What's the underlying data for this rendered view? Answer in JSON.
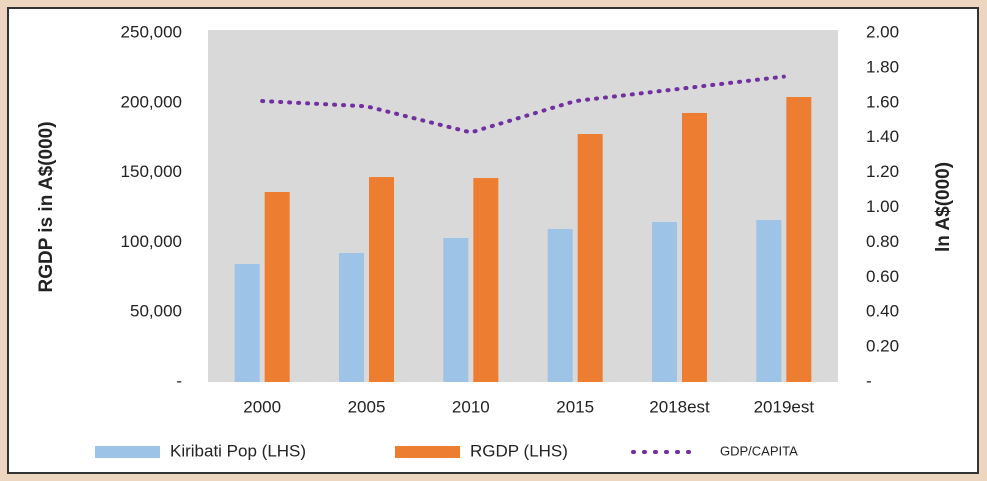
{
  "chart_data": {
    "type": "bar",
    "categories": [
      "2000",
      "2005",
      "2010",
      "2015",
      "2018est",
      "2019est"
    ],
    "series": [
      {
        "name": "Kiribati Pop (LHS)",
        "color": "#9dc3e6",
        "kind": "bar",
        "values": [
          84500,
          92400,
          103150,
          109600,
          114600,
          116000
        ]
      },
      {
        "name": "RGDP (LHS)",
        "color": "#ed7d31",
        "kind": "bar",
        "values": [
          136100,
          146800,
          146100,
          177650,
          192700,
          204150
        ]
      },
      {
        "name": "GDP/CAPITA",
        "color": "#7030a0",
        "kind": "line",
        "axis": "y2",
        "values": [
          1.61,
          1.58,
          1.43,
          1.61,
          1.68,
          1.75
        ]
      }
    ],
    "y_label": "RGDP is in A$(000)",
    "y2_label": "ln A$(000)",
    "ylim": [
      0,
      250000
    ],
    "yticks": [
      {
        "value": 0,
        "label": "-"
      },
      {
        "value": 50000,
        "label": "50,000"
      },
      {
        "value": 100000,
        "label": "100,000"
      },
      {
        "value": 150000,
        "label": "150,000"
      },
      {
        "value": 200000,
        "label": "200,000"
      },
      {
        "value": 250000,
        "label": "250,000"
      }
    ],
    "y2lim": [
      0,
      2
    ],
    "y2ticks": [
      {
        "value": 0,
        "label": "-"
      },
      {
        "value": 0.2,
        "label": "0.20"
      },
      {
        "value": 0.4,
        "label": "0.40"
      },
      {
        "value": 0.6,
        "label": "0.60"
      },
      {
        "value": 0.8,
        "label": "0.80"
      },
      {
        "value": 1,
        "label": "1.00"
      },
      {
        "value": 1.2,
        "label": "1.20"
      },
      {
        "value": 1.4,
        "label": "1.40"
      },
      {
        "value": 1.6,
        "label": "1.60"
      },
      {
        "value": 1.8,
        "label": "1.80"
      },
      {
        "value": 2,
        "label": "2.00"
      }
    ],
    "legend": "bottom",
    "plot_background": "#d9d9d9"
  }
}
